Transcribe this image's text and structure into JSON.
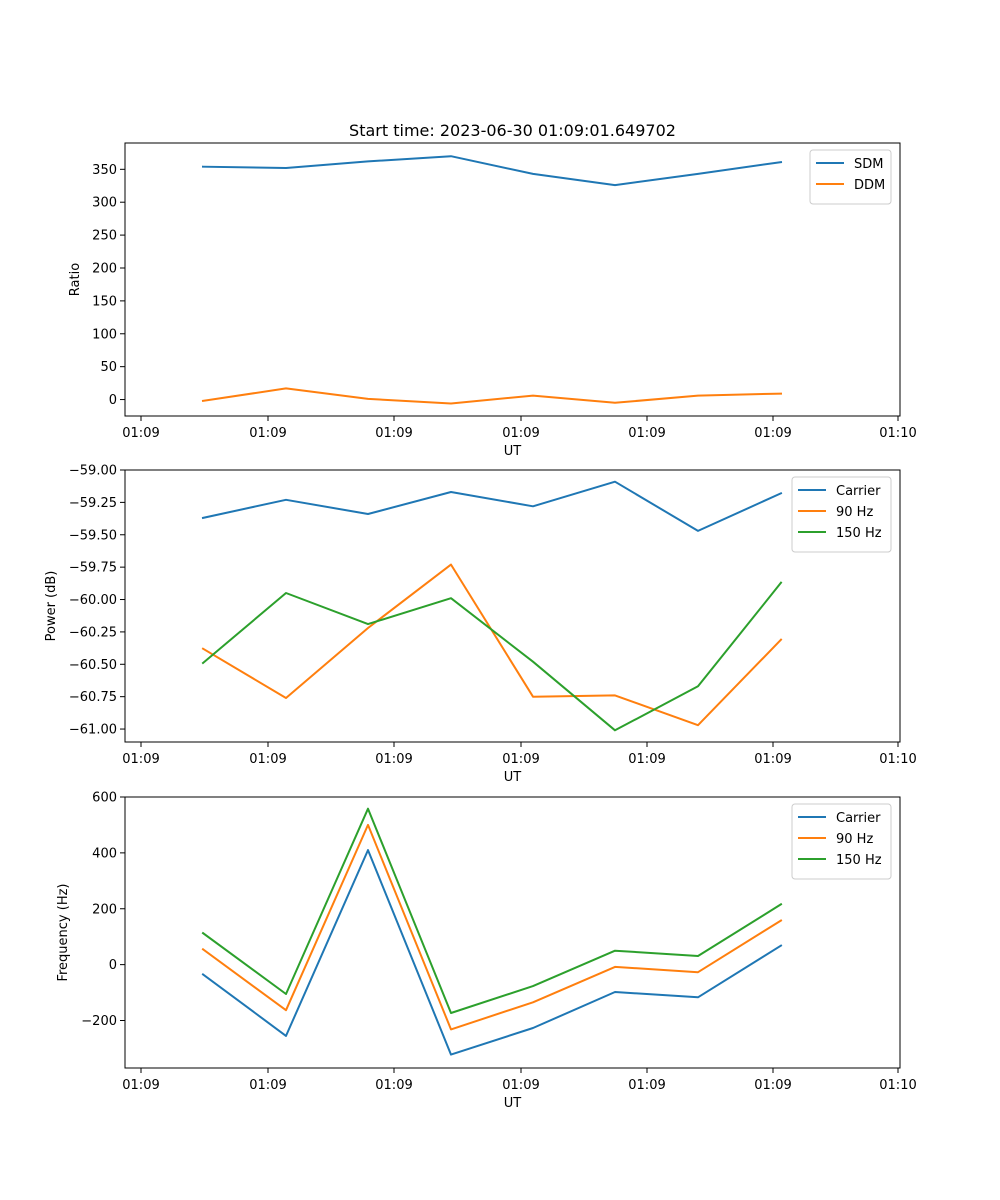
{
  "chart_data": [
    {
      "type": "line",
      "title": "Start time: 2023-06-30 01:09:01.649702",
      "xlabel": "UT",
      "ylabel": "Ratio",
      "xtick_labels": [
        "01:09",
        "01:09",
        "01:09",
        "01:09",
        "01:09",
        "01:09",
        "01:10"
      ],
      "ylim": [
        -25,
        390
      ],
      "yticks": [
        0,
        50,
        100,
        150,
        200,
        250,
        300,
        350
      ],
      "ytick_labels": [
        "0",
        "50",
        "100",
        "150",
        "200",
        "250",
        "300",
        "350"
      ],
      "legend_position": "top-right",
      "series": [
        {
          "name": "SDM",
          "color": "#1f77b4",
          "values": [
            354,
            352,
            362,
            370,
            343,
            326,
            343,
            361
          ]
        },
        {
          "name": "DDM",
          "color": "#ff7f0e",
          "values": [
            -2,
            17,
            1,
            -6,
            6,
            -5,
            6,
            9
          ]
        }
      ]
    },
    {
      "type": "line",
      "title": "",
      "xlabel": "UT",
      "ylabel": "Power (dB)",
      "xtick_labels": [
        "01:09",
        "01:09",
        "01:09",
        "01:09",
        "01:09",
        "01:09",
        "01:10"
      ],
      "ylim": [
        -61.1,
        -59.0
      ],
      "yticks": [
        -61.0,
        -60.75,
        -60.5,
        -60.25,
        -60.0,
        -59.75,
        -59.5,
        -59.25,
        -59.0
      ],
      "ytick_labels": [
        "−61.00",
        "−60.75",
        "−60.50",
        "−60.25",
        "−60.00",
        "−59.75",
        "−59.50",
        "−59.25",
        "−59.00"
      ],
      "legend_position": "top-right",
      "series": [
        {
          "name": "Carrier",
          "color": "#1f77b4",
          "values": [
            -59.37,
            -59.23,
            -59.34,
            -59.17,
            -59.28,
            -59.09,
            -59.47,
            -59.18
          ]
        },
        {
          "name": "90 Hz",
          "color": "#ff7f0e",
          "values": [
            -60.38,
            -60.76,
            -60.22,
            -59.73,
            -60.75,
            -60.74,
            -60.97,
            -60.31
          ]
        },
        {
          "name": "150 Hz",
          "color": "#2ca02c",
          "values": [
            -60.49,
            -59.95,
            -60.19,
            -59.99,
            -60.48,
            -61.01,
            -60.67,
            -59.87
          ]
        }
      ]
    },
    {
      "type": "line",
      "title": "",
      "xlabel": "UT",
      "ylabel": "Frequency (Hz)",
      "xtick_labels": [
        "01:09",
        "01:09",
        "01:09",
        "01:09",
        "01:09",
        "01:09",
        "01:10"
      ],
      "ylim": [
        -370,
        600
      ],
      "yticks": [
        -200,
        0,
        200,
        400,
        600
      ],
      "ytick_labels": [
        "−200",
        "0",
        "200",
        "400",
        "600"
      ],
      "legend_position": "top-right",
      "series": [
        {
          "name": "Carrier",
          "color": "#1f77b4",
          "values": [
            -35,
            -255,
            410,
            -322,
            -227,
            -98,
            -117,
            68
          ]
        },
        {
          "name": "90 Hz",
          "color": "#ff7f0e",
          "values": [
            55,
            -163,
            500,
            -232,
            -135,
            -8,
            -27,
            158
          ]
        },
        {
          "name": "150 Hz",
          "color": "#2ca02c",
          "values": [
            113,
            -105,
            558,
            -173,
            -77,
            50,
            31,
            216
          ]
        }
      ]
    }
  ]
}
